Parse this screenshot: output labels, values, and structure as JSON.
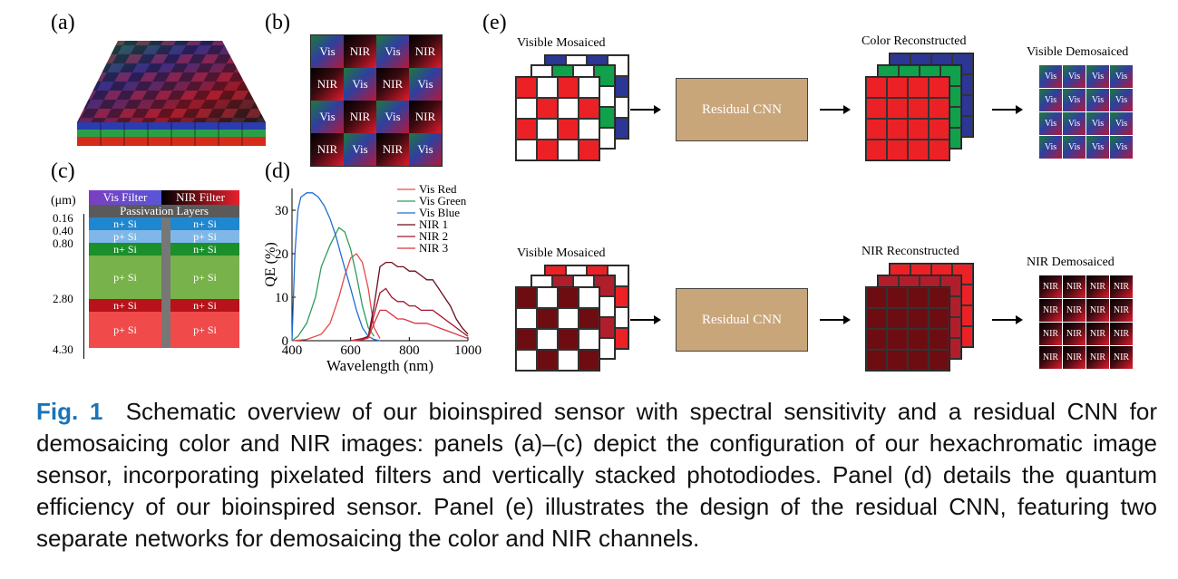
{
  "panels": {
    "a": "(a)",
    "b": "(b)",
    "c": "(c)",
    "d": "(d)",
    "e": "(e)"
  },
  "mosaic_b": {
    "rows": [
      [
        "Vis",
        "NIR",
        "Vis",
        "NIR"
      ],
      [
        "NIR",
        "Vis",
        "NIR",
        "Vis"
      ],
      [
        "Vis",
        "NIR",
        "Vis",
        "NIR"
      ],
      [
        "NIR",
        "Vis",
        "NIR",
        "Vis"
      ]
    ]
  },
  "stack_c": {
    "unit": "(μm)",
    "filters": [
      "Vis Filter",
      "NIR Filter"
    ],
    "passivation": "Passivation Layers",
    "depths": [
      "0.16",
      "0.40",
      "0.80",
      "2.80",
      "4.30"
    ],
    "layers": [
      "n+ Si",
      "p+ Si",
      "n+ Si",
      "p+ Si",
      "n+ Si",
      "p+ Si"
    ]
  },
  "chart_data": {
    "type": "line",
    "title": "",
    "xlabel": "Wavelength (nm)",
    "ylabel": "QE (%)",
    "xlim": [
      400,
      1000
    ],
    "ylim": [
      0,
      35
    ],
    "xticks": [
      400,
      600,
      800,
      1000
    ],
    "yticks": [
      0,
      10,
      20,
      30
    ],
    "legend_position": "top-right",
    "series": [
      {
        "name": "Vis Red",
        "color": "#e34a4a",
        "x": [
          400,
          450,
          500,
          530,
          560,
          580,
          600,
          620,
          640,
          660,
          680,
          700
        ],
        "y": [
          0,
          0.3,
          1.5,
          4,
          10,
          15,
          19,
          20,
          18,
          12,
          3,
          0.5
        ]
      },
      {
        "name": "Vis Green",
        "color": "#2e9c5c",
        "x": [
          400,
          420,
          450,
          480,
          500,
          530,
          560,
          580,
          600,
          620,
          640,
          660,
          680
        ],
        "y": [
          0,
          1,
          4,
          10,
          17,
          22,
          26,
          25,
          21,
          15,
          8,
          3,
          1
        ]
      },
      {
        "name": "Vis Blue",
        "color": "#1f6fd1",
        "x": [
          400,
          410,
          420,
          430,
          450,
          470,
          490,
          510,
          530,
          550,
          570,
          600,
          620,
          640,
          660,
          680,
          700
        ],
        "y": [
          0,
          20,
          30,
          33,
          34,
          34,
          33,
          31,
          28,
          24,
          19,
          12,
          7,
          3,
          1,
          0.3,
          0
        ]
      },
      {
        "name": "NIR 1",
        "color": "#6b0d1c",
        "x": [
          600,
          640,
          660,
          680,
          700,
          720,
          740,
          760,
          780,
          800,
          820,
          840,
          860,
          880,
          900,
          920,
          940,
          960,
          980,
          1000
        ],
        "y": [
          0,
          0.5,
          1,
          8,
          17,
          18,
          18,
          17,
          17,
          16,
          16,
          15,
          14,
          14,
          12,
          10,
          8,
          5,
          3,
          1.5
        ]
      },
      {
        "name": "NIR 2",
        "color": "#a3162e",
        "x": [
          600,
          640,
          660,
          680,
          700,
          720,
          740,
          760,
          780,
          800,
          820,
          840,
          860,
          880,
          900,
          920,
          940,
          960,
          980,
          1000
        ],
        "y": [
          0,
          0.3,
          0.8,
          6,
          11,
          12,
          10,
          9,
          9,
          8,
          8,
          7,
          7,
          7,
          6,
          5,
          4,
          3,
          2,
          1
        ]
      },
      {
        "name": "NIR 3",
        "color": "#d9323f",
        "x": [
          600,
          640,
          660,
          680,
          700,
          720,
          740,
          760,
          780,
          800,
          820,
          840,
          860,
          880,
          900,
          920,
          940,
          960,
          980,
          1000
        ],
        "y": [
          0,
          0.2,
          0.6,
          4,
          7,
          7,
          6,
          5,
          5,
          4.5,
          4,
          4,
          4,
          3.5,
          3,
          2.5,
          2,
          1.5,
          1,
          0.5
        ]
      }
    ]
  },
  "panel_e": {
    "top": {
      "input": "Visible Mosaiced",
      "network": "Residual CNN",
      "reconstructed": "Color Reconstructed",
      "output": "Visible Demosaiced",
      "cell": "Vis"
    },
    "bottom": {
      "input": "Visible Mosaiced",
      "network": "Residual CNN",
      "reconstructed": "NIR Reconstructed",
      "output": "NIR Demosaiced",
      "cell": "NIR"
    },
    "colors": {
      "red": "#ec2126",
      "green": "#10a14a",
      "blue": "#2b3695",
      "dark_red": "#6d0d12",
      "mid_red": "#b01e2c",
      "cnn_box": "#c9a57a"
    }
  },
  "caption": {
    "fig_number": "Fig. 1",
    "text": "Schematic overview of our bioinspired sensor with spectral sensitivity and a residual CNN for demosaicing color and NIR images: panels (a)–(c) depict the configuration of our hexachro­matic image sensor, incorporating pixelated filters and vertically stacked photodiodes. Panel (d) details the quantum efficiency of our bioinspired sensor. Panel (e) illustrates the design of the residual CNN, featuring two separate networks for demosaicing the color and NIR channels."
  }
}
